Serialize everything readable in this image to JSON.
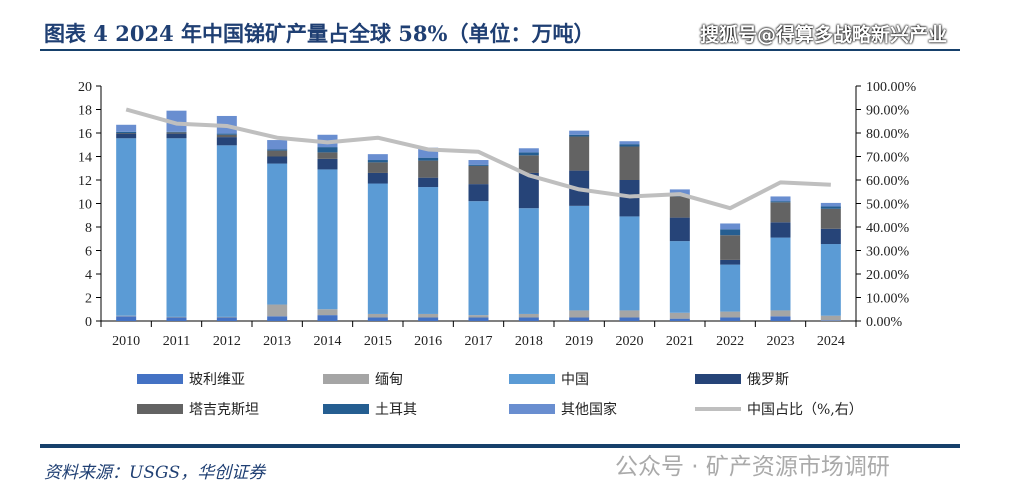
{
  "watermark_top": "搜狐号@得算多战略新兴产业",
  "title": "图表 4  2024 年中国锑矿产量占全球 58%（单位：万吨）",
  "source": "资料来源：USGS，华创证券",
  "watermark_bottom": "公众号 · 矿产资源市场调研",
  "chart_data": {
    "type": "bar",
    "stacked": true,
    "categories": [
      "2010",
      "2011",
      "2012",
      "2013",
      "2014",
      "2015",
      "2016",
      "2017",
      "2018",
      "2019",
      "2020",
      "2021",
      "2022",
      "2023",
      "2024"
    ],
    "ylim": [
      0,
      20
    ],
    "yticks": [
      "0",
      "2",
      "4",
      "6",
      "8",
      "10",
      "12",
      "14",
      "16",
      "18",
      "20"
    ],
    "y2lim": [
      0,
      100
    ],
    "y2ticks": [
      "0.00%",
      "10.00%",
      "20.00%",
      "30.00%",
      "40.00%",
      "50.00%",
      "60.00%",
      "70.00%",
      "80.00%",
      "90.00%",
      "100.00%"
    ],
    "grid": false,
    "legend_position": "bottom",
    "series": [
      {
        "name": "玻利维亚",
        "color": "#4472c4",
        "values": [
          0.4,
          0.3,
          0.3,
          0.4,
          0.5,
          0.3,
          0.3,
          0.3,
          0.3,
          0.3,
          0.3,
          0.2,
          0.3,
          0.4,
          0.05
        ]
      },
      {
        "name": "缅甸",
        "color": "#a5a5a5",
        "values": [
          0.05,
          0.05,
          0.05,
          1.0,
          0.5,
          0.3,
          0.3,
          0.2,
          0.3,
          0.6,
          0.6,
          0.5,
          0.5,
          0.5,
          0.4
        ]
      },
      {
        "name": "中国",
        "color": "#5b9bd5",
        "values": [
          15.1,
          15.2,
          14.6,
          12.0,
          11.9,
          11.1,
          10.8,
          9.7,
          9.0,
          8.9,
          8.0,
          6.1,
          4.0,
          6.2,
          6.1
        ]
      },
      {
        "name": "俄罗斯",
        "color": "#264478",
        "values": [
          0.4,
          0.4,
          0.7,
          0.6,
          0.9,
          0.9,
          0.8,
          1.45,
          3.0,
          3.0,
          3.1,
          2.0,
          0.4,
          1.3,
          1.3
        ]
      },
      {
        "name": "塔吉克斯坦",
        "color": "#636363",
        "values": [
          0.05,
          0.1,
          0.2,
          0.5,
          0.55,
          0.9,
          1.45,
          1.55,
          1.5,
          2.9,
          2.85,
          1.8,
          2.1,
          1.7,
          1.7
        ]
      },
      {
        "name": "土耳其",
        "color": "#255e91",
        "values": [
          0.1,
          0.05,
          0.1,
          0.1,
          0.45,
          0.2,
          0.25,
          0.1,
          0.25,
          0.15,
          0.2,
          0.15,
          0.5,
          0.1,
          0.2
        ]
      },
      {
        "name": "其他国家",
        "color": "#698ed0",
        "values": [
          0.6,
          1.8,
          1.5,
          0.8,
          1.05,
          0.5,
          0.85,
          0.4,
          0.35,
          0.35,
          0.25,
          0.45,
          0.5,
          0.4,
          0.3
        ]
      }
    ],
    "line": {
      "name": "中国占比（%,右）",
      "color": "#bfbfbf",
      "axis": "right",
      "values": [
        90,
        84,
        83,
        78,
        76,
        78,
        73,
        72,
        62,
        56,
        53,
        54,
        48,
        59,
        58
      ]
    }
  }
}
